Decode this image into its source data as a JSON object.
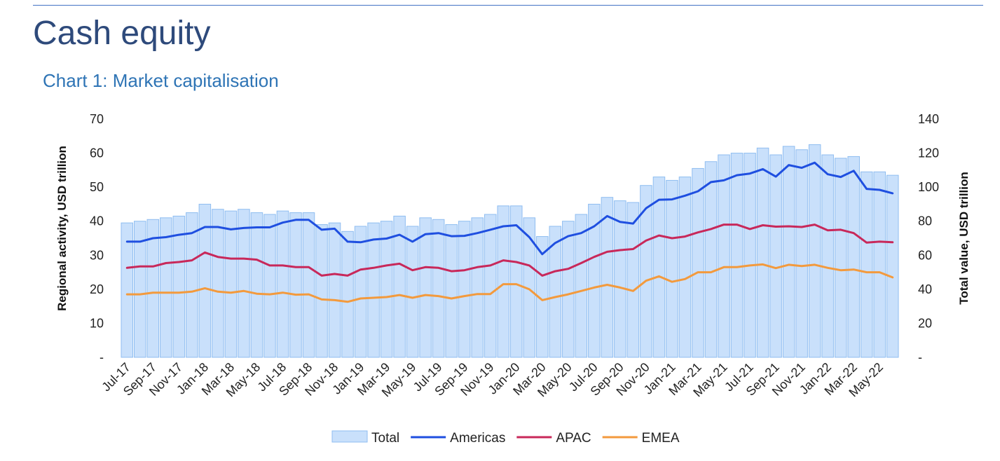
{
  "page_title": "Cash equity",
  "chart_data": {
    "type": "bar+line",
    "title": "Chart 1: Market capitalisation",
    "left_axis": {
      "label": "Regional activity, USD trillion",
      "range": [
        0,
        70
      ],
      "ticks": [
        "-",
        "10",
        "20",
        "30",
        "40",
        "50",
        "60",
        "70"
      ]
    },
    "right_axis": {
      "label": "Total value, USD trillion",
      "range": [
        0,
        140
      ],
      "ticks": [
        "-",
        "20",
        "40",
        "60",
        "80",
        "100",
        "120",
        "140"
      ]
    },
    "x_tick_labels": [
      "Jul-17",
      "Sep-17",
      "Nov-17",
      "Jan-18",
      "Mar-18",
      "May-18",
      "Jul-18",
      "Sep-18",
      "Nov-18",
      "Jan-19",
      "Mar-19",
      "May-19",
      "Jul-19",
      "Sep-19",
      "Nov-19",
      "Jan-20",
      "Mar-20",
      "May-20",
      "Jul-20",
      "Sep-20",
      "Nov-20",
      "Jan-21",
      "Mar-21",
      "May-21",
      "Jul-21",
      "Sep-21",
      "Nov-21",
      "Jan-22",
      "Mar-22",
      "May-22"
    ],
    "x": [
      "Jul-17",
      "Aug-17",
      "Sep-17",
      "Oct-17",
      "Nov-17",
      "Dec-17",
      "Jan-18",
      "Feb-18",
      "Mar-18",
      "Apr-18",
      "May-18",
      "Jun-18",
      "Jul-18",
      "Aug-18",
      "Sep-18",
      "Oct-18",
      "Nov-18",
      "Dec-18",
      "Jan-19",
      "Feb-19",
      "Mar-19",
      "Apr-19",
      "May-19",
      "Jun-19",
      "Jul-19",
      "Aug-19",
      "Sep-19",
      "Oct-19",
      "Nov-19",
      "Dec-19",
      "Jan-20",
      "Feb-20",
      "Mar-20",
      "Apr-20",
      "May-20",
      "Jun-20",
      "Jul-20",
      "Aug-20",
      "Sep-20",
      "Oct-20",
      "Nov-20",
      "Dec-20",
      "Jan-21",
      "Feb-21",
      "Mar-21",
      "Apr-21",
      "May-21",
      "Jun-21",
      "Jul-21",
      "Aug-21",
      "Sep-21",
      "Oct-21",
      "Nov-21",
      "Dec-21",
      "Jan-22",
      "Feb-22",
      "Mar-22",
      "Apr-22",
      "May-22",
      "Jun-22"
    ],
    "legend_position": "bottom",
    "series": [
      {
        "name": "Total",
        "type": "bar",
        "axis": "right",
        "color": "#c9e0fb",
        "border": "#8fbdf0",
        "values": [
          79,
          80,
          81,
          82,
          83,
          85,
          90,
          87,
          86,
          87,
          85,
          84,
          86,
          85,
          85,
          78,
          79,
          74,
          77,
          79,
          80,
          83,
          77,
          82,
          81,
          78,
          80,
          82,
          84,
          89,
          89,
          82,
          71,
          77,
          80,
          84,
          90,
          94,
          92,
          91,
          101,
          106,
          104,
          106,
          111,
          115,
          119,
          120,
          120,
          123,
          119,
          124,
          122,
          125,
          119,
          117,
          118,
          109,
          109,
          107
        ]
      },
      {
        "name": "Americas",
        "type": "line",
        "axis": "left",
        "color": "#1f4fe0",
        "values": [
          34.0,
          34.0,
          35.0,
          35.3,
          36.0,
          36.5,
          38.3,
          38.3,
          37.6,
          38.0,
          38.2,
          38.2,
          39.6,
          40.4,
          40.4,
          37.5,
          37.8,
          34.0,
          33.8,
          34.6,
          34.9,
          36.0,
          34.0,
          36.2,
          36.5,
          35.6,
          35.7,
          36.5,
          37.5,
          38.5,
          38.8,
          35.3,
          30.3,
          33.6,
          35.6,
          36.5,
          38.5,
          41.5,
          39.8,
          39.3,
          43.8,
          46.3,
          46.4,
          47.5,
          48.8,
          51.5,
          52.0,
          53.5,
          54.0,
          55.3,
          53.1,
          56.5,
          55.7,
          57.2,
          53.8,
          53.0,
          54.8,
          49.5,
          49.2,
          48.2
        ]
      },
      {
        "name": "APAC",
        "type": "line",
        "axis": "left",
        "color": "#c8285a",
        "values": [
          26.3,
          26.7,
          26.7,
          27.7,
          28.0,
          28.5,
          30.8,
          29.5,
          29.0,
          29.0,
          28.7,
          27.0,
          27.0,
          26.5,
          26.5,
          24.0,
          24.5,
          24.0,
          25.8,
          26.3,
          27.0,
          27.5,
          25.6,
          26.5,
          26.3,
          25.3,
          25.6,
          26.5,
          27.0,
          28.5,
          28.0,
          27.0,
          24.0,
          25.3,
          26.0,
          27.7,
          29.5,
          31.0,
          31.5,
          31.8,
          34.3,
          35.8,
          35.0,
          35.5,
          36.7,
          37.7,
          39.0,
          39.0,
          37.7,
          38.8,
          38.4,
          38.5,
          38.3,
          39.0,
          37.3,
          37.5,
          36.5,
          33.7,
          34.0,
          33.8
        ]
      },
      {
        "name": "EMEA",
        "type": "line",
        "axis": "left",
        "color": "#f39a3d",
        "values": [
          18.5,
          18.5,
          19.0,
          19.0,
          19.0,
          19.3,
          20.3,
          19.3,
          19.0,
          19.5,
          18.7,
          18.5,
          19.0,
          18.4,
          18.5,
          17.0,
          16.8,
          16.3,
          17.3,
          17.5,
          17.7,
          18.3,
          17.5,
          18.3,
          18.0,
          17.3,
          18.0,
          18.6,
          18.6,
          21.5,
          21.5,
          20.0,
          16.8,
          17.7,
          18.5,
          19.5,
          20.5,
          21.3,
          20.5,
          19.5,
          22.5,
          23.8,
          22.2,
          23.0,
          25.0,
          25.0,
          26.5,
          26.5,
          27.0,
          27.3,
          26.2,
          27.2,
          26.8,
          27.2,
          26.3,
          25.6,
          25.8,
          25.0,
          25.0,
          23.5
        ]
      }
    ]
  }
}
